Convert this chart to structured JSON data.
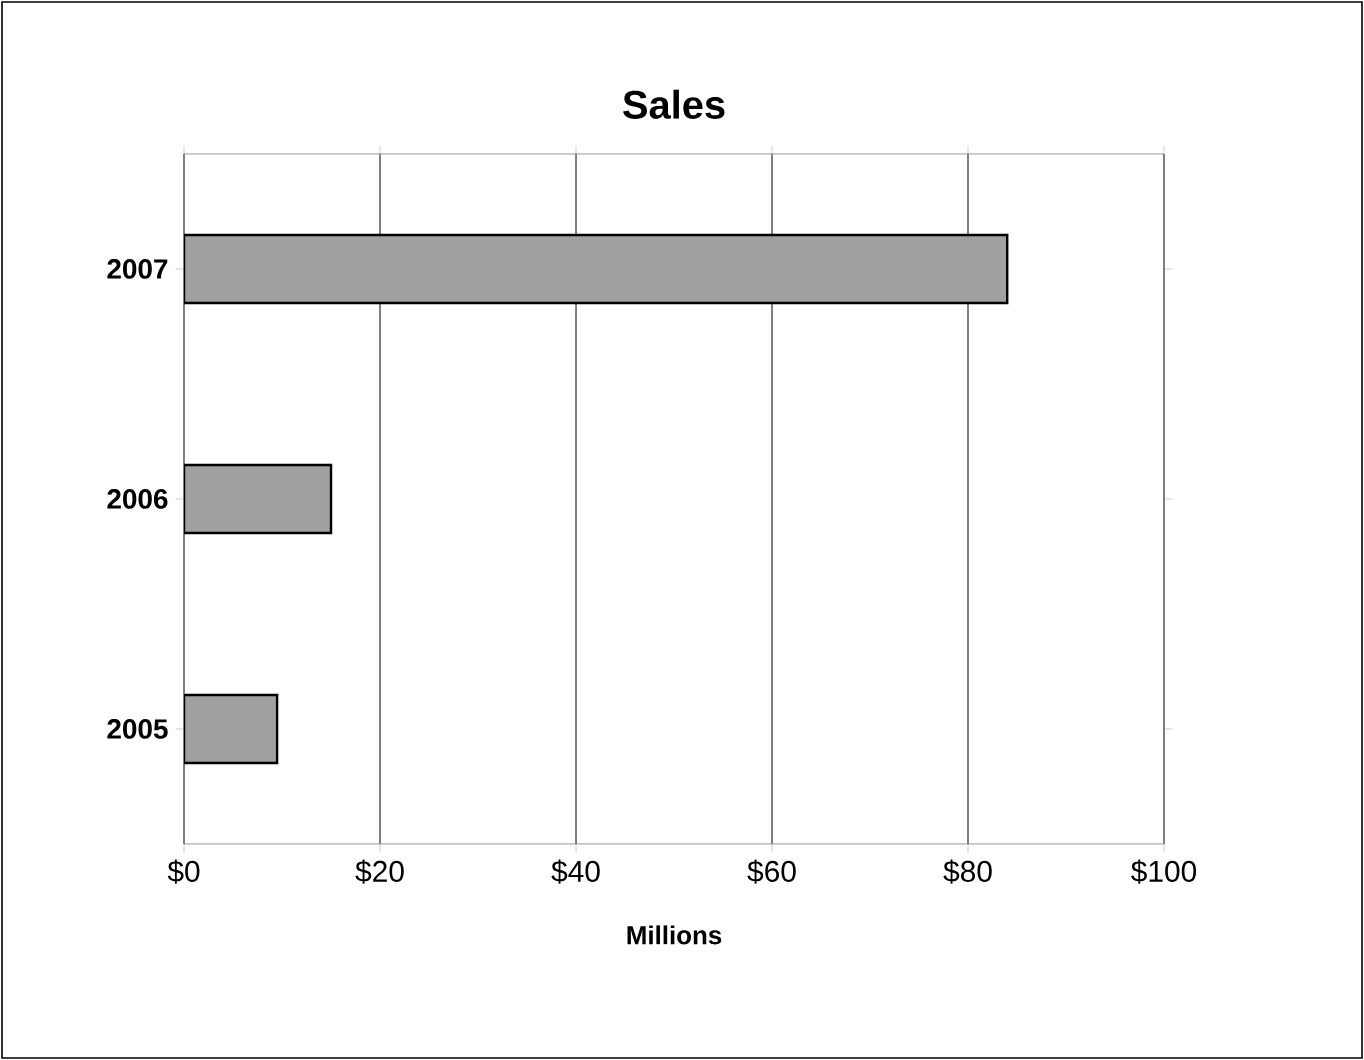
{
  "chart_data": {
    "type": "bar",
    "orientation": "horizontal",
    "title": "Sales",
    "xlabel": "Millions",
    "categories": [
      "2007",
      "2006",
      "2005"
    ],
    "values": [
      84,
      15,
      9.5
    ],
    "color": "#a0a0a0",
    "xlim": [
      0,
      100
    ],
    "xticks": [
      {
        "value": 0,
        "label": "$0"
      },
      {
        "value": 20,
        "label": "$20"
      },
      {
        "value": 40,
        "label": "$40"
      },
      {
        "value": 60,
        "label": "$60"
      },
      {
        "value": 80,
        "label": "$80"
      },
      {
        "value": 100,
        "label": "$100"
      }
    ],
    "grid": "x"
  }
}
